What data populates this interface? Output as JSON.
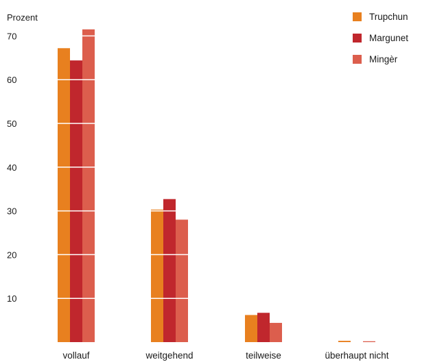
{
  "chart_data": {
    "type": "bar",
    "ylabel": "Prozent",
    "xlabel": "",
    "ylim": [
      0,
      75
    ],
    "yticks": [
      10,
      20,
      30,
      40,
      50,
      60,
      70
    ],
    "categories": [
      "vollauf",
      "weitgehend",
      "teilweise",
      "überhaupt nicht"
    ],
    "series": [
      {
        "name": "Trupchun",
        "color": "#e8801f",
        "values": [
          67.2,
          30.3,
          6.2,
          0.3
        ]
      },
      {
        "name": "Margunet",
        "color": "#c0272d",
        "values": [
          64.4,
          32.7,
          6.7,
          0.0
        ]
      },
      {
        "name": "Mingèr",
        "color": "#dc5e4d",
        "values": [
          71.5,
          28.0,
          4.4,
          0.2
        ]
      }
    ],
    "grid": "white lines across bars",
    "legend_position": "top-right"
  }
}
